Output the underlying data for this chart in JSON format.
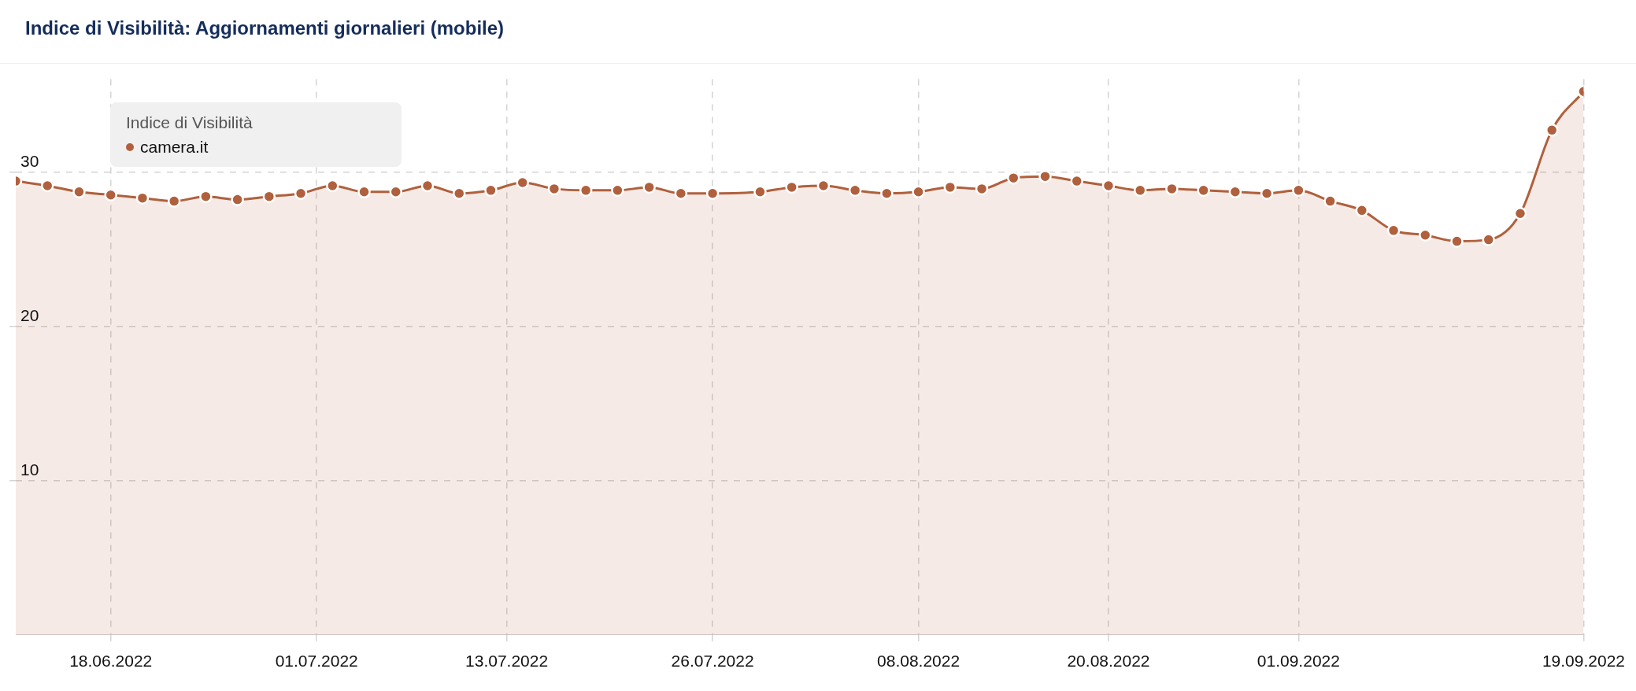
{
  "chart_data": {
    "type": "area",
    "title": "Indice di Visibilità: Aggiornamenti giornalieri (mobile)",
    "legend_title": "Indice di Visibilità",
    "legend": "top left",
    "grid": true,
    "marker": "circle",
    "line_style": "solid",
    "x": [
      "2022-06-12",
      "2022-06-14",
      "2022-06-16",
      "2022-06-18",
      "2022-06-20",
      "2022-06-22",
      "2022-06-24",
      "2022-06-26",
      "2022-06-28",
      "2022-06-30",
      "2022-07-02",
      "2022-07-04",
      "2022-07-06",
      "2022-07-08",
      "2022-07-10",
      "2022-07-12",
      "2022-07-14",
      "2022-07-16",
      "2022-07-18",
      "2022-07-20",
      "2022-07-22",
      "2022-07-24",
      "2022-07-26",
      "2022-07-29",
      "2022-07-31",
      "2022-08-02",
      "2022-08-04",
      "2022-08-06",
      "2022-08-08",
      "2022-08-10",
      "2022-08-12",
      "2022-08-14",
      "2022-08-16",
      "2022-08-18",
      "2022-08-20",
      "2022-08-22",
      "2022-08-24",
      "2022-08-26",
      "2022-08-28",
      "2022-08-30",
      "2022-09-01",
      "2022-09-03",
      "2022-09-05",
      "2022-09-07",
      "2022-09-09",
      "2022-09-11",
      "2022-09-13",
      "2022-09-15",
      "2022-09-17",
      "2022-09-19"
    ],
    "series": [
      {
        "name": "camera.it",
        "color": "#b0603c",
        "values": [
          29.4,
          29.1,
          28.7,
          28.5,
          28.3,
          28.1,
          28.4,
          28.2,
          28.4,
          28.6,
          29.1,
          28.7,
          28.7,
          29.1,
          28.6,
          28.8,
          29.3,
          28.9,
          28.8,
          28.8,
          29.0,
          28.6,
          28.6,
          28.7,
          29.0,
          29.1,
          28.8,
          28.6,
          28.7,
          29.0,
          28.9,
          29.6,
          29.7,
          29.4,
          29.1,
          28.8,
          28.9,
          28.8,
          28.7,
          28.6,
          28.8,
          28.1,
          27.5,
          26.2,
          25.9,
          25.5,
          25.6,
          27.3,
          32.7,
          35.2
        ]
      }
    ],
    "xlim": [
      "2022-06-12",
      "2022-09-19"
    ],
    "xticks": [
      {
        "value": "2022-06-18",
        "label": "18.06.2022"
      },
      {
        "value": "2022-07-01",
        "label": "01.07.2022"
      },
      {
        "value": "2022-07-13",
        "label": "13.07.2022"
      },
      {
        "value": "2022-07-26",
        "label": "26.07.2022"
      },
      {
        "value": "2022-08-08",
        "label": "08.08.2022"
      },
      {
        "value": "2022-08-20",
        "label": "20.08.2022"
      },
      {
        "value": "2022-09-01",
        "label": "01.09.2022"
      },
      {
        "value": "2022-09-19",
        "label": "19.09.2022"
      }
    ],
    "ylim": [
      0,
      36
    ],
    "yticks": [
      10,
      20,
      30
    ]
  }
}
